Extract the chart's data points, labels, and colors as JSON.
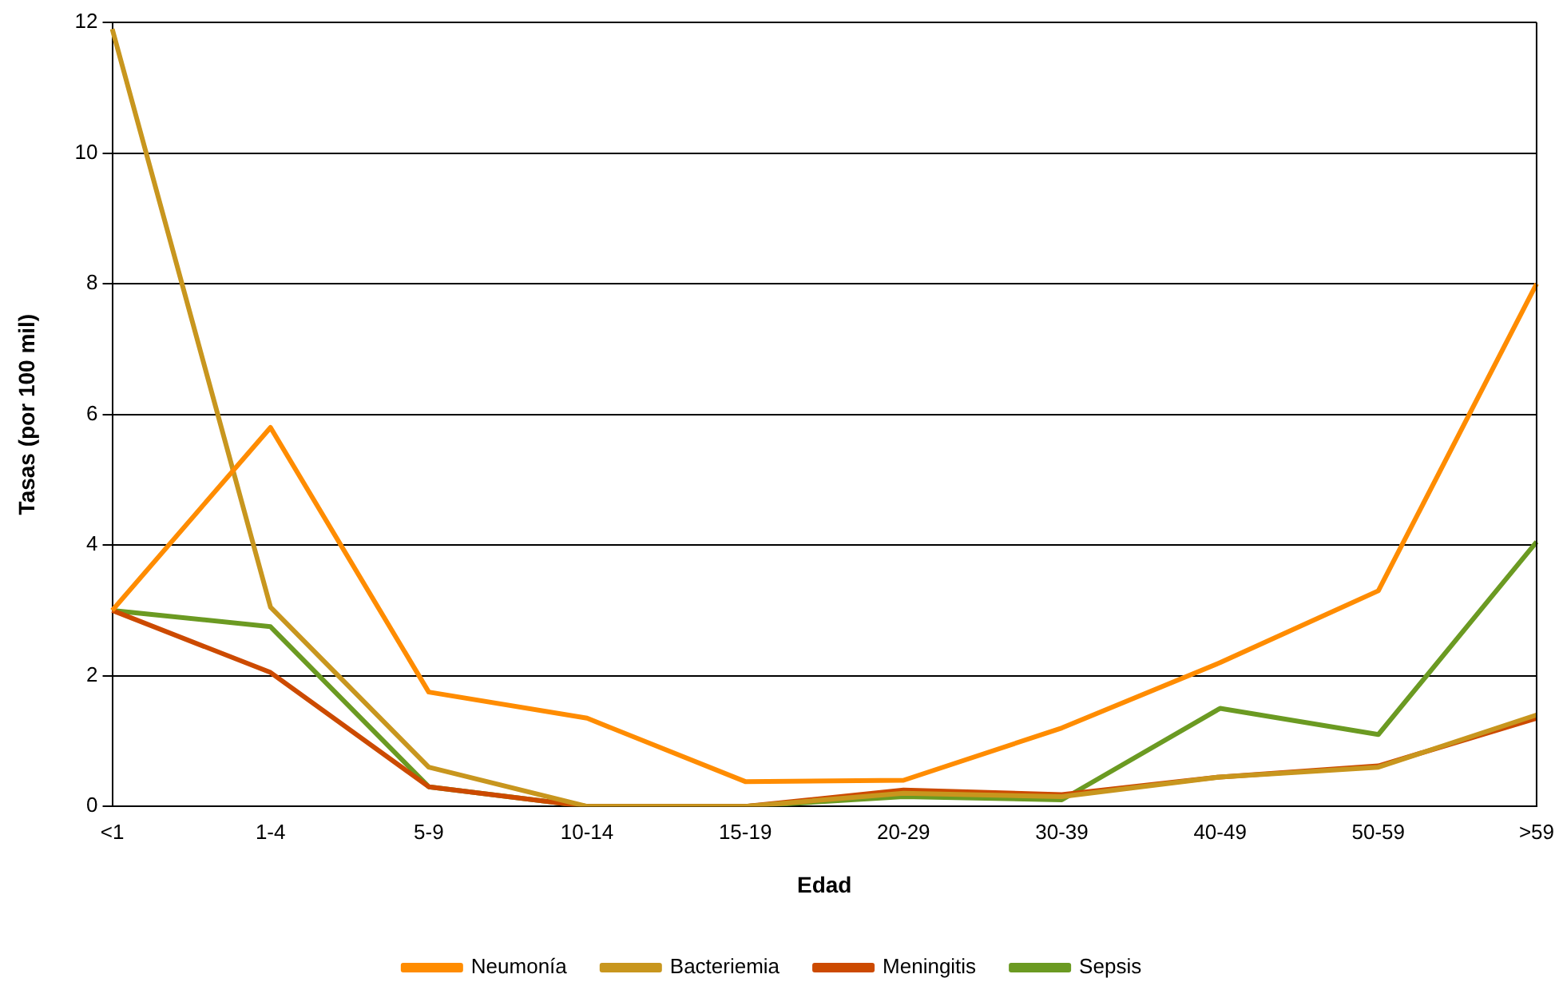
{
  "chart_data": {
    "type": "line",
    "xlabel": "Edad",
    "ylabel": "Tasas (por 100 mil)",
    "categories": [
      "<1",
      "1-4",
      "5-9",
      "10-14",
      "15-19",
      "20-29",
      "30-39",
      "40-49",
      "50-59",
      ">59"
    ],
    "series": [
      {
        "name": "Neumonía",
        "color": "#ff8c00",
        "values": [
          3.0,
          5.8,
          1.75,
          1.35,
          0.38,
          0.4,
          1.2,
          2.2,
          3.3,
          8.0
        ]
      },
      {
        "name": "Bacteriemia",
        "color": "#c8961e",
        "values": [
          11.9,
          3.05,
          0.6,
          0,
          0,
          0.2,
          0.15,
          0.45,
          0.6,
          1.4
        ]
      },
      {
        "name": "Meningitis",
        "color": "#cc4a00",
        "values": [
          3.0,
          2.05,
          0.3,
          0,
          0,
          0.25,
          0.18,
          0.45,
          0.62,
          1.35
        ]
      },
      {
        "name": "Sepsis",
        "color": "#6b9a22",
        "values": [
          3.0,
          2.75,
          0.3,
          0,
          0,
          0.15,
          0.1,
          1.5,
          1.1,
          4.05
        ]
      }
    ],
    "ylim": [
      0,
      12
    ],
    "yticks": [
      0,
      2,
      4,
      6,
      8,
      10,
      12
    ],
    "grid": "y",
    "legend": "bottom",
    "marker": "none",
    "line_style": "solid"
  }
}
